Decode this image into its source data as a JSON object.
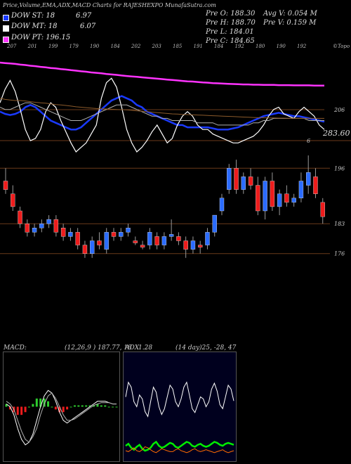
{
  "header": {
    "title": "Price,Volume,EMA,ADX,MACD Charts for RAJESHEXPO MunafaSutra.com"
  },
  "legend": [
    {
      "label": "DOW ST: 18",
      "value": "6.97",
      "color": "#1a3aff"
    },
    {
      "label": "DOW MT: 18",
      "value": "6.07",
      "color": "#ffffff"
    },
    {
      "label": "DOW PT: 196.15",
      "value": "",
      "color": "#ff33ff"
    }
  ],
  "quote": {
    "pre_o": "Pre O: 188.30",
    "pre_h": "Pre H: 188.70",
    "pre_l": "Pre L: 184.01",
    "pre_c": "Pre C: 184.65",
    "avg_v": "Avg V: 0.054 M",
    "pre_v": "Pre V: 0.159 M"
  },
  "top_ticks": [
    "207",
    "201",
    "199",
    "179",
    "190",
    "184",
    "202",
    "203",
    "185",
    "191",
    "184",
    "192",
    "180",
    "190",
    "192"
  ],
  "top_right_label": "©Topo",
  "ema_labels": {
    "right_upper": "206",
    "right_price": "283.60",
    "small": "6"
  },
  "chart_data": [
    {
      "type": "line",
      "name": "ema-panel",
      "x": [
        0,
        1,
        2,
        3,
        4,
        5,
        6,
        7,
        8,
        9,
        10,
        11,
        12,
        13,
        14,
        15,
        16,
        17,
        18,
        19,
        20,
        21,
        22,
        23,
        24,
        25,
        26,
        27,
        28,
        29,
        30,
        31,
        32,
        33,
        34,
        35,
        36,
        37,
        38,
        39,
        40,
        41,
        42,
        43,
        44,
        45,
        46,
        47,
        48,
        49,
        50,
        51,
        52,
        53,
        54,
        55,
        56,
        57,
        58,
        59,
        60,
        61,
        62,
        63,
        64
      ],
      "series": [
        {
          "color": "#ff33ff",
          "values": [
            206.0,
            205.8,
            205.6,
            205.4,
            205.1,
            204.9,
            204.6,
            204.4,
            204.1,
            203.9,
            203.6,
            203.4,
            203.1,
            202.9,
            202.6,
            202.4,
            202.1,
            201.9,
            201.6,
            201.4,
            201.2,
            200.9,
            200.7,
            200.5,
            200.2,
            200.0,
            199.8,
            199.6,
            199.4,
            199.2,
            199.0,
            198.8,
            198.6,
            198.4,
            198.2,
            198.0,
            197.8,
            197.6,
            197.5,
            197.3,
            197.1,
            197.0,
            196.8,
            196.7,
            196.6,
            196.5,
            196.4,
            196.3,
            196.2,
            196.2,
            196.1,
            196.1,
            196.0,
            196.0,
            196.0,
            195.9,
            195.9,
            195.9,
            195.8,
            195.8,
            195.8,
            195.8,
            195.7,
            195.7,
            195.7
          ]
        },
        {
          "color": "#1a3aff",
          "values": [
            184,
            183,
            182.5,
            183,
            184,
            186,
            187,
            186,
            184,
            182,
            180,
            179,
            178,
            177,
            176,
            176,
            177,
            179,
            181,
            183,
            185,
            187,
            189,
            190,
            191,
            190,
            189,
            187,
            186,
            184,
            183,
            182,
            181,
            180,
            179,
            178,
            178,
            177,
            177,
            177,
            177,
            177,
            176.5,
            176,
            176,
            176,
            176.5,
            177,
            178,
            179,
            180,
            181,
            182,
            182.5,
            183,
            183.5,
            183,
            182.5,
            182,
            182,
            181.5,
            181,
            180.5,
            180,
            179.5
          ]
        },
        {
          "color": "#ffffff",
          "values": [
            188,
            194,
            198,
            193,
            185,
            176,
            171,
            172,
            176,
            184,
            188,
            186,
            180,
            175,
            170,
            166,
            168,
            170,
            174,
            178,
            190,
            197,
            199,
            195,
            186,
            176,
            170,
            166,
            168,
            171,
            175,
            178,
            174,
            170,
            172,
            178,
            182,
            184,
            182,
            178,
            176,
            176,
            174,
            173,
            172,
            171,
            170,
            170,
            171,
            172,
            173,
            175,
            178,
            182,
            185,
            186,
            183,
            182,
            181,
            184,
            186,
            184,
            182,
            178,
            176
          ]
        },
        {
          "color": "#b0b0b0",
          "values": [
            186,
            185,
            185,
            186,
            187,
            188,
            188,
            187,
            186,
            185,
            184,
            183,
            182,
            181,
            180,
            180,
            180,
            181,
            182,
            183,
            184,
            185,
            186,
            187,
            187,
            187,
            186,
            185,
            184,
            183,
            182,
            182,
            181,
            181,
            180,
            180,
            180,
            180,
            180,
            179,
            179,
            179,
            179,
            178,
            178,
            178,
            178,
            178,
            178,
            178,
            179,
            179,
            180,
            180,
            181,
            181,
            181,
            181,
            181,
            181,
            181,
            180,
            180,
            180,
            180
          ]
        },
        {
          "color": "#8b5a2b",
          "values": [
            190,
            189.5,
            189.2,
            189,
            189,
            188.8,
            188.5,
            188.2,
            188,
            187.8,
            187.5,
            187.2,
            187,
            186.8,
            186.5,
            186.2,
            186,
            185.8,
            185.6,
            185.4,
            185.3,
            185.2,
            185.1,
            185,
            184.9,
            184.8,
            184.6,
            184.4,
            184.2,
            184,
            183.8,
            183.6,
            183.4,
            183.2,
            183,
            182.9,
            182.8,
            182.7,
            182.6,
            182.5,
            182.4,
            182.3,
            182.2,
            182.1,
            182,
            181.9,
            181.8,
            181.7,
            181.6,
            181.5,
            181.4,
            181.3,
            181.3,
            181.2,
            181.2,
            181.1,
            181.1,
            181,
            181,
            181,
            181,
            181,
            181,
            181,
            181
          ]
        }
      ]
    },
    {
      "type": "candlestick",
      "name": "price-panel",
      "y_labels": [
        "196",
        "183",
        "176"
      ],
      "candles": [
        {
          "o": 193,
          "h": 196,
          "l": 190,
          "c": 191
        },
        {
          "o": 190,
          "h": 192,
          "l": 186,
          "c": 187
        },
        {
          "o": 186,
          "h": 187,
          "l": 182,
          "c": 183
        },
        {
          "o": 183,
          "h": 184,
          "l": 180,
          "c": 181
        },
        {
          "o": 181,
          "h": 183,
          "l": 180,
          "c": 182
        },
        {
          "o": 182,
          "h": 184,
          "l": 181,
          "c": 183
        },
        {
          "o": 183,
          "h": 185,
          "l": 182,
          "c": 184
        },
        {
          "o": 184,
          "h": 185,
          "l": 180,
          "c": 181
        },
        {
          "o": 182,
          "h": 183,
          "l": 179,
          "c": 180
        },
        {
          "o": 180,
          "h": 182,
          "l": 179,
          "c": 181
        },
        {
          "o": 181,
          "h": 182,
          "l": 177,
          "c": 178
        },
        {
          "o": 178,
          "h": 179,
          "l": 175,
          "c": 176
        },
        {
          "o": 176,
          "h": 180,
          "l": 175,
          "c": 179
        },
        {
          "o": 179,
          "h": 181,
          "l": 177,
          "c": 178
        },
        {
          "o": 177,
          "h": 182,
          "l": 176,
          "c": 181
        },
        {
          "o": 181,
          "h": 182,
          "l": 179,
          "c": 180
        },
        {
          "o": 180,
          "h": 182,
          "l": 179,
          "c": 181
        },
        {
          "o": 181,
          "h": 183,
          "l": 180,
          "c": 182
        },
        {
          "o": 179,
          "h": 180,
          "l": 178,
          "c": 178.5
        },
        {
          "o": 178,
          "h": 179,
          "l": 177,
          "c": 177.5
        },
        {
          "o": 178,
          "h": 182,
          "l": 177,
          "c": 181
        },
        {
          "o": 180,
          "h": 181,
          "l": 177,
          "c": 178
        },
        {
          "o": 178,
          "h": 181,
          "l": 177,
          "c": 180
        },
        {
          "o": 180,
          "h": 184,
          "l": 179,
          "c": 180.5
        },
        {
          "o": 180,
          "h": 181,
          "l": 178,
          "c": 179
        },
        {
          "o": 179,
          "h": 180,
          "l": 175,
          "c": 177
        },
        {
          "o": 177,
          "h": 180,
          "l": 176,
          "c": 179
        },
        {
          "o": 178,
          "h": 179,
          "l": 176,
          "c": 177.5
        },
        {
          "o": 178,
          "h": 182,
          "l": 177,
          "c": 181
        },
        {
          "o": 181,
          "h": 185,
          "l": 180,
          "c": 185
        },
        {
          "o": 186,
          "h": 190,
          "l": 185,
          "c": 189
        },
        {
          "o": 191,
          "h": 197,
          "l": 190,
          "c": 196
        },
        {
          "o": 196,
          "h": 198,
          "l": 190,
          "c": 191
        },
        {
          "o": 191,
          "h": 195,
          "l": 190,
          "c": 194
        },
        {
          "o": 194,
          "h": 196,
          "l": 191,
          "c": 192
        },
        {
          "o": 192,
          "h": 194,
          "l": 185,
          "c": 186
        },
        {
          "o": 186,
          "h": 194,
          "l": 184,
          "c": 193
        },
        {
          "o": 193,
          "h": 195,
          "l": 186,
          "c": 187
        },
        {
          "o": 187,
          "h": 191,
          "l": 185,
          "c": 190
        },
        {
          "o": 190,
          "h": 192,
          "l": 187,
          "c": 188
        },
        {
          "o": 188,
          "h": 190,
          "l": 187,
          "c": 189
        },
        {
          "o": 189,
          "h": 195,
          "l": 188,
          "c": 193
        },
        {
          "o": 192,
          "h": 199,
          "l": 190,
          "c": 195
        },
        {
          "o": 194,
          "h": 196,
          "l": 189,
          "c": 190
        },
        {
          "o": 188,
          "h": 189,
          "l": 183,
          "c": 184.65
        }
      ]
    },
    {
      "type": "line",
      "name": "macd-panel",
      "title": "MACD:",
      "params": "(12,26,9 ) 187.77, 18",
      "x": [
        0,
        1,
        2,
        3,
        4,
        5,
        6,
        7,
        8,
        9,
        10,
        11,
        12,
        13,
        14,
        15,
        16,
        17,
        18,
        19,
        20,
        21,
        22,
        23,
        24,
        25,
        26,
        27,
        28,
        29
      ],
      "series": [
        {
          "color": "#ffffff",
          "values": [
            0.1,
            0.0,
            -0.3,
            -0.8,
            -1.2,
            -1.4,
            -1.3,
            -1.0,
            -0.5,
            0.0,
            0.4,
            0.6,
            0.5,
            0.2,
            -0.2,
            -0.5,
            -0.6,
            -0.5,
            -0.4,
            -0.3,
            -0.2,
            -0.1,
            0.0,
            0.1,
            0.2,
            0.2,
            0.2,
            0.15,
            0.1,
            0.1
          ]
        },
        {
          "color": "#b0b0b0",
          "values": [
            0.2,
            0.1,
            -0.1,
            -0.5,
            -0.9,
            -1.2,
            -1.3,
            -1.1,
            -0.8,
            -0.3,
            0.1,
            0.4,
            0.5,
            0.3,
            0.0,
            -0.3,
            -0.5,
            -0.5,
            -0.45,
            -0.35,
            -0.25,
            -0.15,
            -0.05,
            0.05,
            0.1,
            0.15,
            0.15,
            0.15,
            0.1,
            0.1
          ]
        },
        {
          "type": "histogram",
          "values": [
            0.1,
            -0.1,
            -0.2,
            -0.3,
            -0.3,
            -0.2,
            0.0,
            0.1,
            0.3,
            0.3,
            0.3,
            0.2,
            0.0,
            -0.1,
            -0.2,
            -0.2,
            -0.1,
            0.0,
            0.05,
            0.05,
            0.05,
            0.05,
            0.05,
            0.05,
            0.1,
            0.05,
            0.05,
            0.0,
            0.0,
            0.0
          ]
        }
      ]
    },
    {
      "type": "line",
      "name": "adx-panel",
      "title": "ADX",
      "params": "(14 day)25, -28, 47",
      "left_value": "1.28",
      "x": [
        0,
        1,
        2,
        3,
        4,
        5,
        6,
        7,
        8,
        9,
        10,
        11,
        12,
        13,
        14,
        15,
        16,
        17,
        18,
        19,
        20,
        21,
        22,
        23,
        24,
        25,
        26,
        27,
        28,
        29,
        30,
        31,
        32,
        33,
        34,
        35,
        36,
        37,
        38,
        39
      ],
      "series": [
        {
          "color": "#ffffff",
          "values": [
            60,
            75,
            70,
            55,
            50,
            62,
            58,
            45,
            40,
            55,
            70,
            65,
            50,
            42,
            48,
            60,
            72,
            68,
            55,
            50,
            58,
            70,
            75,
            62,
            48,
            44,
            52,
            60,
            58,
            50,
            55,
            68,
            74,
            66,
            52,
            48,
            60,
            72,
            68,
            56
          ]
        },
        {
          "color": "#00ee00",
          "values": [
            10,
            12,
            8,
            6,
            9,
            11,
            7,
            5,
            6,
            8,
            12,
            14,
            10,
            8,
            9,
            11,
            13,
            12,
            9,
            8,
            10,
            12,
            14,
            13,
            10,
            9,
            11,
            12,
            10,
            9,
            10,
            12,
            14,
            13,
            11,
            10,
            12,
            13,
            12,
            11
          ]
        },
        {
          "color": "#ff6a00",
          "values": [
            5,
            4,
            6,
            8,
            5,
            4,
            6,
            9,
            8,
            6,
            4,
            3,
            5,
            7,
            6,
            5,
            4,
            4,
            6,
            7,
            5,
            4,
            3,
            4,
            6,
            7,
            5,
            4,
            5,
            6,
            5,
            4,
            3,
            4,
            5,
            6,
            4,
            3,
            4,
            5
          ]
        }
      ]
    }
  ]
}
